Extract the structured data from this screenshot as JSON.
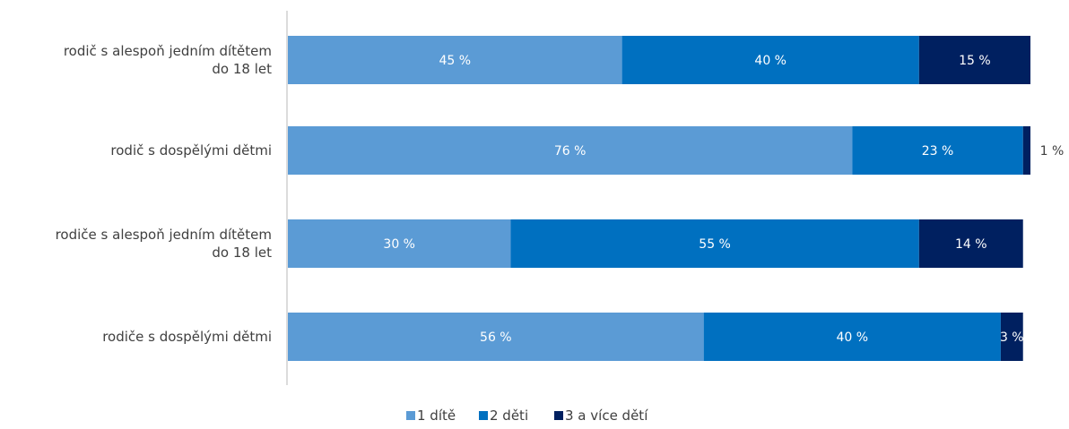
{
  "chart_data": {
    "type": "bar",
    "orientation": "horizontal",
    "stacked": true,
    "categories": [
      [
        "rodič s alespoň jedním dítětem",
        "do 18 let"
      ],
      [
        "rodič s dospělými dětmi"
      ],
      [
        "rodiče s alespoň jedním dítětem",
        "do 18 let"
      ],
      [
        "rodiče s dospělými dětmi"
      ]
    ],
    "series": [
      {
        "name": "1 dítě",
        "values": [
          45,
          76,
          30,
          56
        ],
        "labels": [
          "45 %",
          "76 %",
          "30 %",
          "56 %"
        ],
        "color": "#5B9BD5"
      },
      {
        "name": "2 děti",
        "values": [
          40,
          23,
          55,
          40
        ],
        "labels": [
          "40 %",
          "23 %",
          "55 %",
          "40 %"
        ],
        "color": "#0070C0"
      },
      {
        "name": "3 a více dětí",
        "values": [
          15,
          1,
          14,
          3
        ],
        "labels": [
          "15 %",
          "1 %",
          "14 %",
          "3 %"
        ],
        "color": "#002060"
      }
    ],
    "xlim": [
      0,
      100
    ],
    "grid": false,
    "legend_position": "bottom"
  }
}
